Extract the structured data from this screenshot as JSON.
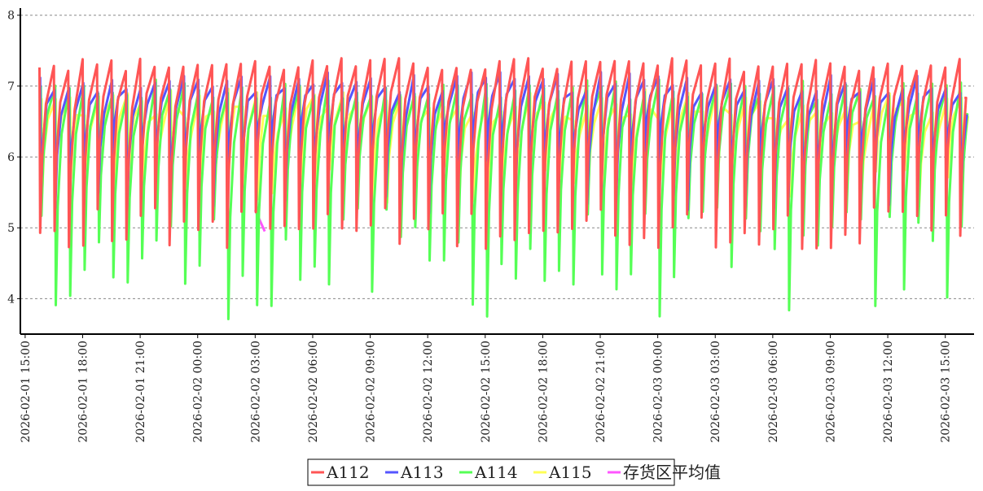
{
  "chart_data": {
    "type": "line",
    "title": "",
    "xlabel": "",
    "ylabel": "",
    "ylim": [
      3.5,
      8.1
    ],
    "y_ticks": [
      4,
      5,
      6,
      7,
      8
    ],
    "grid": "horizontal dashed",
    "legend_position": "bottom-center",
    "x_range": [
      "2026-02-01 14:45",
      "2026-02-03 16:30"
    ],
    "x_ticks": [
      "2026-02-01 15:00",
      "2026-02-01 18:00",
      "2026-02-01 21:00",
      "2026-02-02 00:00",
      "2026-02-02 03:00",
      "2026-02-02 06:00",
      "2026-02-02 09:00",
      "2026-02-02 12:00",
      "2026-02-02 15:00",
      "2026-02-02 18:00",
      "2026-02-02 21:00",
      "2026-02-03 00:00",
      "2026-02-03 03:00",
      "2026-02-03 06:00",
      "2026-02-03 09:00",
      "2026-02-03 12:00",
      "2026-02-03 15:00"
    ],
    "cycle_minutes": 45,
    "series": [
      {
        "name": "A112",
        "color": "#ff5555",
        "peak_range": [
          7.2,
          7.4
        ],
        "trough_range": [
          4.7,
          5.3
        ],
        "x_start": "2026-02-01 15:45",
        "x_end": "2026-02-03 16:00"
      },
      {
        "name": "A113",
        "color": "#5555ff",
        "peak_range": [
          6.9,
          7.2
        ],
        "trough_range": [
          5.2,
          6.1
        ],
        "x_start": "2026-02-01 15:45",
        "x_end": "2026-02-03 16:00"
      },
      {
        "name": "A114",
        "color": "#55ff55",
        "peak_range": [
          6.8,
          7.1
        ],
        "trough_range": [
          3.7,
          5.3
        ],
        "x_start": "2026-02-01 15:45",
        "x_end": "2026-02-03 16:00"
      },
      {
        "name": "A115",
        "color": "#ffff55",
        "peak_range": [
          6.5,
          7.0
        ],
        "trough_range": [
          5.3,
          5.9
        ],
        "x_start": "2026-02-01 15:45",
        "x_end": "2026-02-03 16:00"
      },
      {
        "name": "存货区平均值",
        "color": "#ff55ff",
        "points": [
          [
            "2026-02-02 03:00",
            5.25
          ],
          [
            "2026-02-02 03:30",
            4.95
          ]
        ]
      }
    ]
  }
}
